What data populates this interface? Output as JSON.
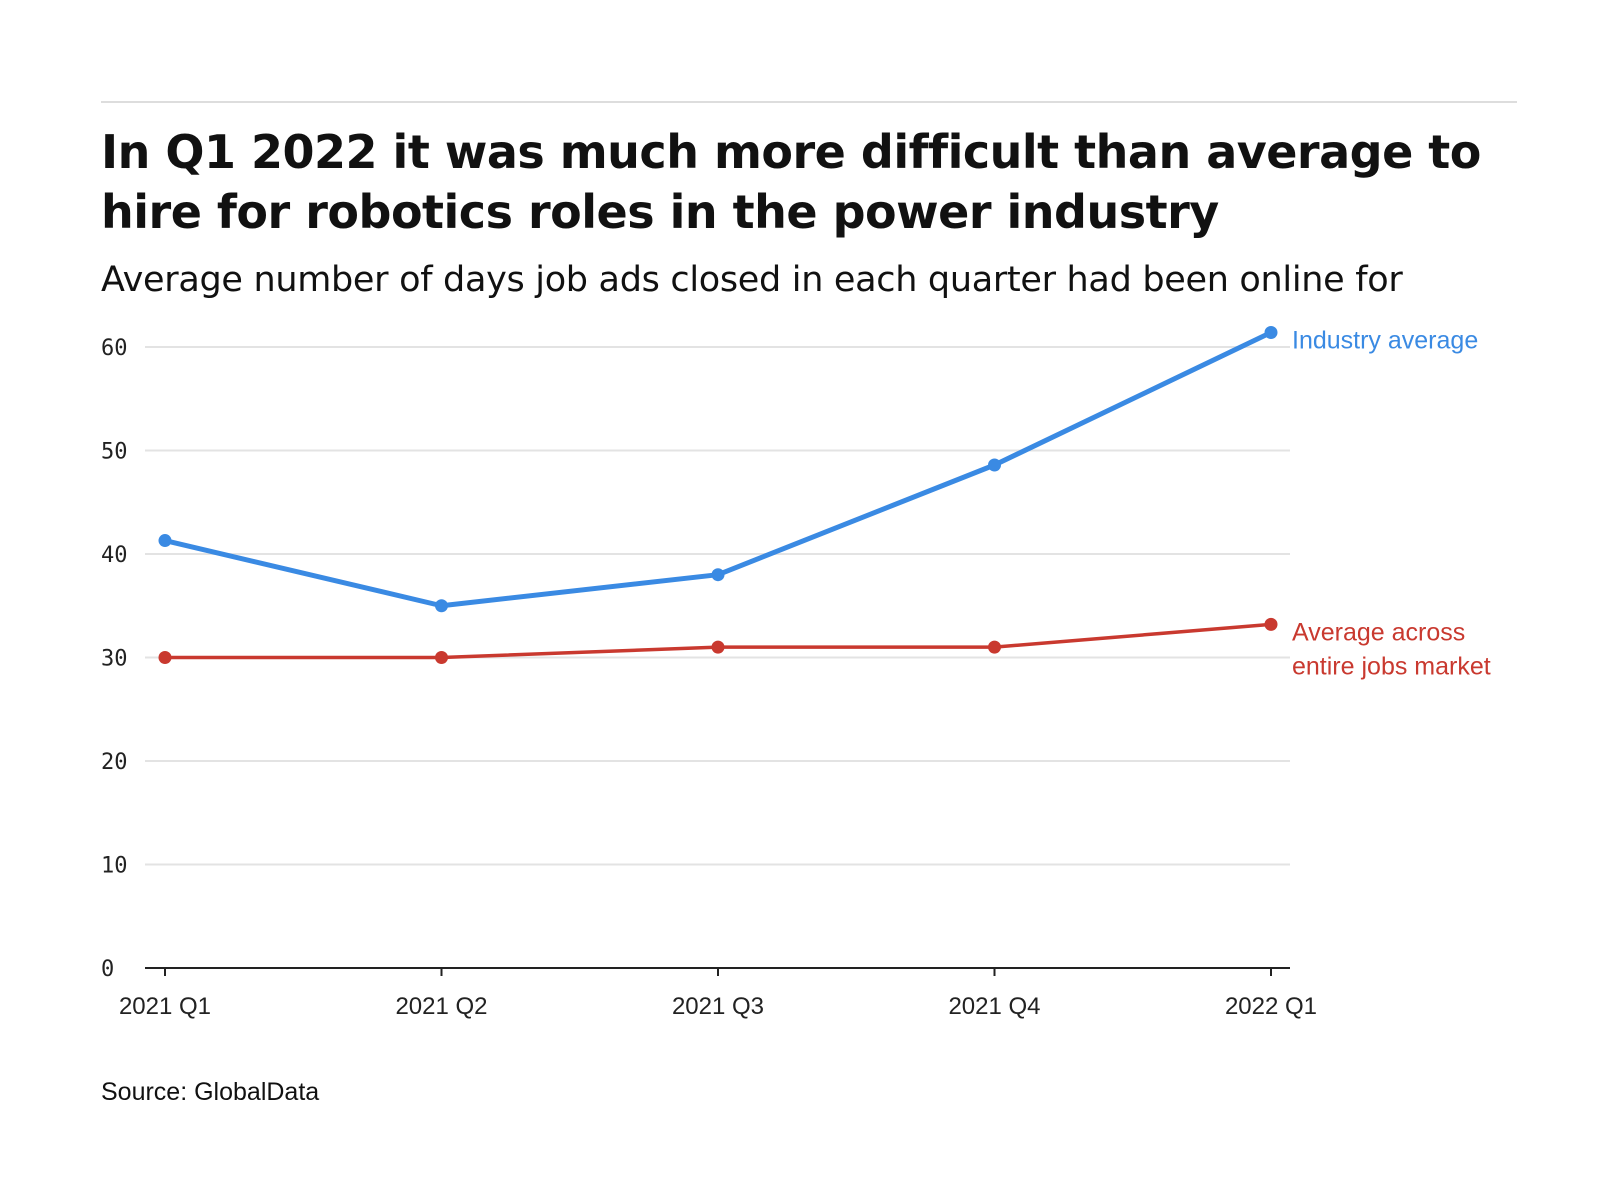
{
  "title": "In Q1 2022 it was much more difficult than average to hire for robotics roles in the power industry",
  "subtitle": "Average number of days job ads closed in each quarter had been online for",
  "source": "Source: GlobalData",
  "chart_data": {
    "type": "line",
    "categories": [
      "2021 Q1",
      "2021 Q2",
      "2021 Q3",
      "2021 Q4",
      "2022 Q1"
    ],
    "ylim": [
      0,
      60
    ],
    "yticks": [
      "0",
      "10",
      "20",
      "30",
      "40",
      "50",
      "60"
    ],
    "grid": true,
    "legend": "direct labels at line ends (right)",
    "series": [
      {
        "name": "Industry average",
        "color": "#3a8ae3",
        "values": [
          41.3,
          35.0,
          38.0,
          48.6,
          61.4
        ]
      },
      {
        "name": "Average across entire jobs market",
        "name_lines": [
          "Average across",
          "entire jobs market"
        ],
        "color": "#c9392f",
        "values": [
          30.0,
          30.0,
          31.0,
          31.0,
          33.2
        ]
      }
    ]
  }
}
